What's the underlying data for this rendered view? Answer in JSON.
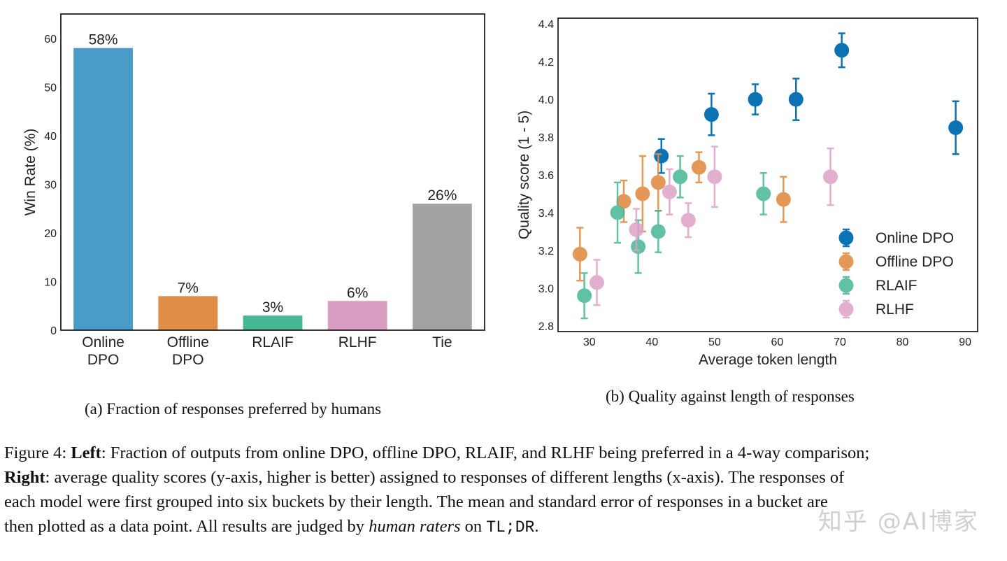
{
  "chart_data": [
    {
      "type": "bar",
      "ylabel": "Win Rate (%)",
      "ylim": [
        0,
        65
      ],
      "yticks": [
        0,
        10,
        20,
        30,
        40,
        50,
        60
      ],
      "categories": [
        [
          "Online",
          "DPO"
        ],
        [
          "Offline",
          "DPO"
        ],
        [
          "RLAIF"
        ],
        [
          "RLHF"
        ],
        [
          "Tie"
        ]
      ],
      "values": [
        58,
        7,
        3,
        6,
        26
      ],
      "value_labels": [
        "58%",
        "7%",
        "3%",
        "6%",
        "26%"
      ],
      "colors": [
        "#4a9cc8",
        "#e08d47",
        "#46b795",
        "#d89ec2",
        "#a3a3a3"
      ],
      "grid": false
    },
    {
      "type": "scatter",
      "xlabel": "Average token length",
      "ylabel": "Quality score (1 - 5)",
      "xlim": [
        25,
        92
      ],
      "ylim": [
        2.77,
        4.43
      ],
      "xticks": [
        30,
        40,
        50,
        60,
        70,
        80,
        90
      ],
      "yticks": [
        2.8,
        3.0,
        3.2,
        3.4,
        3.6,
        3.8,
        4.0,
        4.2,
        4.4
      ],
      "ytick_labels": [
        "2.8",
        "3.0",
        "3.2",
        "3.4",
        "3.6",
        "3.8",
        "4.0",
        "4.2",
        "4.4"
      ],
      "legend_position": "lower-right",
      "series": [
        {
          "name": "Online DPO",
          "color": "#0b72b4",
          "alpha": 1.0,
          "points": [
            [
              41.5,
              3.7,
              0.09
            ],
            [
              49.5,
              3.92,
              0.11
            ],
            [
              56.5,
              4.0,
              0.08
            ],
            [
              63,
              4.0,
              0.11
            ],
            [
              70.3,
              4.26,
              0.09
            ],
            [
              88.5,
              3.85,
              0.14
            ]
          ]
        },
        {
          "name": "Offline DPO",
          "color": "#e08d47",
          "alpha": 0.9,
          "points": [
            [
              28.5,
              3.18,
              0.14
            ],
            [
              35.5,
              3.46,
              0.11
            ],
            [
              38.5,
              3.5,
              0.2
            ],
            [
              41,
              3.56,
              0.15
            ],
            [
              47.5,
              3.64,
              0.08
            ],
            [
              61,
              3.47,
              0.12
            ]
          ]
        },
        {
          "name": "RLAIF",
          "color": "#46b795",
          "alpha": 0.85,
          "points": [
            [
              29.2,
              2.96,
              0.12
            ],
            [
              34.5,
              3.4,
              0.16
            ],
            [
              37.8,
              3.22,
              0.14
            ],
            [
              41,
              3.3,
              0.11
            ],
            [
              44.5,
              3.59,
              0.11
            ],
            [
              57.8,
              3.5,
              0.11
            ]
          ]
        },
        {
          "name": "RLHF",
          "color": "#dda2c6",
          "alpha": 0.85,
          "points": [
            [
              31.2,
              3.03,
              0.12
            ],
            [
              37.5,
              3.31,
              0.11
            ],
            [
              42.8,
              3.51,
              0.12
            ],
            [
              45.8,
              3.36,
              0.09
            ],
            [
              50,
              3.59,
              0.16
            ],
            [
              68.5,
              3.59,
              0.15
            ]
          ]
        }
      ]
    }
  ],
  "captions": {
    "a": "(a) Fraction of responses preferred by humans",
    "b": "(b) Quality against length of responses"
  },
  "figure_caption": {
    "lines": [
      [
        {
          "t": "Figure 4: "
        },
        {
          "t": "Left",
          "b": true
        },
        {
          "t": ": Fraction of outputs from online DPO, offline DPO, RLAIF, and RLHF being preferred in a 4-way comparison;"
        }
      ],
      [
        {
          "t": "Right",
          "b": true
        },
        {
          "t": ": average quality scores (y-axis, higher is better) assigned to responses of different lengths (x-axis). The responses of"
        }
      ],
      [
        {
          "t": "each model were first grouped into six buckets by their length. The mean and standard error of responses in a bucket are"
        }
      ],
      [
        {
          "t": "then plotted as a data point. All results are judged by "
        },
        {
          "t": "human raters",
          "i": true
        },
        {
          "t": " on "
        },
        {
          "t": "TL;DR",
          "m": true
        },
        {
          "t": "."
        }
      ]
    ]
  },
  "watermark": "知乎 @AI博家"
}
